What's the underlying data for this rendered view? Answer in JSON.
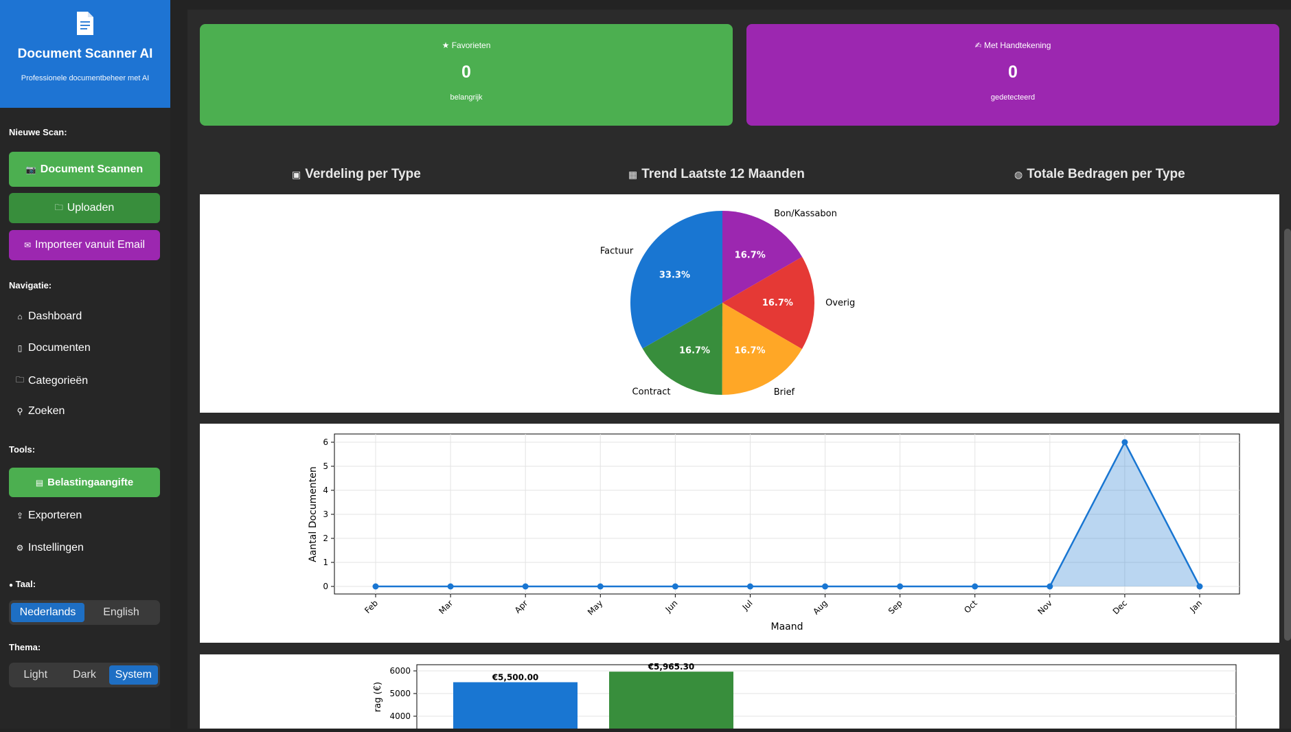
{
  "app": {
    "title": "Document Scanner AI",
    "subtitle": "Professionele documentbeheer met AI"
  },
  "sidebar": {
    "new_scan_heading": "Nieuwe Scan:",
    "scan_button": "Document Scannen",
    "upload_button": "Uploaden",
    "email_import_button": "Importeer vanuit Email",
    "navigation_heading": "Navigatie:",
    "nav_items": [
      {
        "label": "Dashboard",
        "icon": "home-icon"
      },
      {
        "label": "Documenten",
        "icon": "document-icon"
      },
      {
        "label": "Categorieën",
        "icon": "folder-icon"
      },
      {
        "label": "Zoeken",
        "icon": "search-icon"
      }
    ],
    "tools_heading": "Tools:",
    "tax_button": "Belastingaangifte",
    "export_label": "Exporteren",
    "settings_label": "Instellingen",
    "language_heading": "Taal:",
    "languages": [
      "Nederlands",
      "English"
    ],
    "language_selected": "Nederlands",
    "theme_heading": "Thema:",
    "themes": [
      "Light",
      "Dark",
      "System"
    ],
    "theme_selected": "System"
  },
  "cards": [
    {
      "label": "Favorieten",
      "value": "0",
      "sub": "belangrijk",
      "color": "#4caf50",
      "icon": "star-icon"
    },
    {
      "label": "Met Handtekening",
      "value": "0",
      "sub": "gedetecteerd",
      "color": "#9c27b0",
      "icon": "signature-icon"
    }
  ],
  "tabs": [
    {
      "label": "Verdeling per Type",
      "icon": "chart-icon"
    },
    {
      "label": "Trend Laatste 12 Maanden",
      "icon": "trend-icon"
    },
    {
      "label": "Totale Bedragen per Type",
      "icon": "money-bag-icon"
    }
  ],
  "chart_data": [
    {
      "type": "pie",
      "labels": [
        "Bon/Kassabon",
        "Overig",
        "Brief",
        "Contract",
        "Factuur"
      ],
      "values": [
        16.7,
        16.7,
        16.7,
        16.7,
        33.3
      ],
      "pct_labels": [
        "16.7%",
        "16.7%",
        "16.7%",
        "16.7%",
        "33.3%"
      ],
      "colors": [
        "#9c27b0",
        "#e53935",
        "#ffa726",
        "#388e3c",
        "#1976d2"
      ]
    },
    {
      "type": "area",
      "x": [
        "Feb",
        "Mar",
        "Apr",
        "May",
        "Jun",
        "Jul",
        "Aug",
        "Sep",
        "Oct",
        "Nov",
        "Dec",
        "Jan"
      ],
      "y": [
        0,
        0,
        0,
        0,
        0,
        0,
        0,
        0,
        0,
        0,
        6,
        0
      ],
      "xlabel": "Maand",
      "ylabel": "Aantal Documenten",
      "ylim": [
        0,
        6
      ],
      "yticks": [
        "0",
        "1",
        "2",
        "3",
        "4",
        "5",
        "6"
      ],
      "grid": true,
      "color": "#1976d2"
    },
    {
      "type": "bar",
      "values": [
        5500.0,
        5965.3
      ],
      "value_labels": [
        "€5,500.00",
        "€5,965.30"
      ],
      "colors": [
        "#1976d2",
        "#388e3c"
      ],
      "ylabel_visible": "rag (€)",
      "yticks": [
        "6000",
        "5000",
        "4000"
      ],
      "ylim_visible": [
        3600,
        6300
      ]
    }
  ]
}
